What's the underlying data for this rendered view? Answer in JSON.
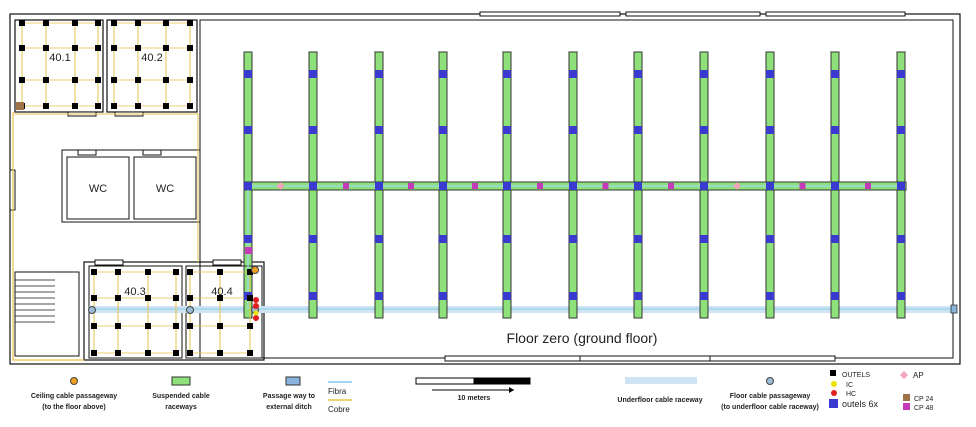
{
  "rooms": {
    "r401": "40.1",
    "r402": "40.2",
    "r403": "40.3",
    "r404": "40.4",
    "wc1": "WC",
    "wc2": "WC"
  },
  "floor_title": "Floor zero (ground floor)",
  "legend": {
    "ceiling_line1": "Ceiling cable passageway",
    "ceiling_line2": "(to the floor above)",
    "raceway_line1": "Suspended cable",
    "raceway_line2": "raceways",
    "ditch_line1": "Passage way to",
    "ditch_line2": "external ditch",
    "fibra": "Fibra",
    "cobre": "Cobre",
    "scale": "10 meters",
    "underfloor": "Underfloor cable raceway",
    "floor_pass_line1": "Floor cable passageway",
    "floor_pass_line2": "(to underfloor cable raceway)",
    "outels": "OUTELS",
    "ic": "IC",
    "hc": "HC",
    "outels6x": "outels 6x",
    "ap": "AP",
    "cp24": "CP 24",
    "cp48": "CP 48"
  },
  "colors": {
    "raceway_fill": "#8ee07a",
    "outlet_blue": "#3a3ad0",
    "outlet_magenta": "#c53ab8",
    "ap_pink": "#f2a4b8",
    "copper": "#e6c34a",
    "fiber": "#9ed8f0",
    "underfloor": "#cfe3f2",
    "ic_yellow": "#e8e400",
    "hc_red": "#e02020",
    "cp24_brown": "#a0724a"
  },
  "icons": {
    "ceiling_pass": "ceiling-passage-icon",
    "floor_pass": "floor-passage-icon"
  }
}
